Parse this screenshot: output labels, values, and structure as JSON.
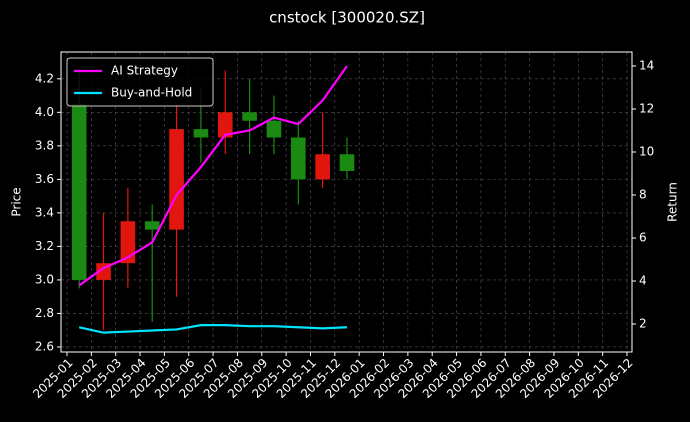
{
  "chart_data": {
    "type": "candlestick",
    "title": "cnstock [300020.SZ]",
    "ylabel": "Price",
    "y2label": "Return",
    "x": [
      "2025-01",
      "2025-02",
      "2025-03",
      "2025-04",
      "2025-05",
      "2025-06",
      "2025-07",
      "2025-08",
      "2025-09",
      "2025-10",
      "2025-11",
      "2025-12"
    ],
    "open": [
      4.05,
      3.0,
      3.1,
      3.35,
      3.3,
      3.9,
      3.85,
      4.0,
      3.95,
      3.85,
      3.6,
      3.75
    ],
    "high": [
      4.25,
      3.4,
      3.55,
      3.45,
      4.05,
      4.15,
      4.25,
      4.2,
      4.1,
      3.95,
      4.0,
      3.85
    ],
    "low": [
      2.95,
      2.7,
      2.95,
      2.75,
      2.9,
      3.7,
      3.75,
      3.75,
      3.75,
      3.45,
      3.55,
      3.6
    ],
    "close": [
      3.0,
      3.1,
      3.35,
      3.3,
      3.9,
      3.85,
      4.0,
      3.95,
      3.85,
      3.6,
      3.75,
      3.65
    ],
    "up_color": "#e0160f",
    "down_color": "#1a8a12",
    "series": [
      {
        "name": "AI Strategy",
        "color": "#ff00ff",
        "axis": "y2",
        "values": [
          3.8,
          4.6,
          5.1,
          5.8,
          8.0,
          9.3,
          10.8,
          11.0,
          11.6,
          11.3,
          12.4,
          14.0
        ]
      },
      {
        "name": "Buy-and-Hold",
        "color": "#00e5ff",
        "axis": "y2",
        "values": [
          1.85,
          1.6,
          1.65,
          1.7,
          1.75,
          1.95,
          1.95,
          1.9,
          1.9,
          1.85,
          1.8,
          1.85
        ]
      }
    ],
    "xlim": [
      "2025-01",
      "2026-12"
    ],
    "xticks": [
      "2025-01",
      "2025-02",
      "2025-03",
      "2025-04",
      "2025-05",
      "2025-06",
      "2025-07",
      "2025-08",
      "2025-09",
      "2025-10",
      "2025-11",
      "2025-12",
      "2026-01",
      "2026-02",
      "2026-03",
      "2026-04",
      "2026-05",
      "2026-06",
      "2026-07",
      "2026-08",
      "2026-09",
      "2026-10",
      "2026-11",
      "2026-12"
    ],
    "ylim": [
      2.57,
      4.36
    ],
    "yticks": [
      2.6,
      2.8,
      {
        "value": 3,
        "label": "3.0"
      },
      3.2,
      3.4,
      3.6,
      3.8,
      {
        "value": 4,
        "label": "4.0"
      },
      4.2
    ],
    "y2lim": [
      0.7,
      14.65
    ],
    "y2ticks": [
      2,
      4,
      6,
      8,
      10,
      12,
      14
    ],
    "grid": true,
    "legend": "upper left"
  }
}
